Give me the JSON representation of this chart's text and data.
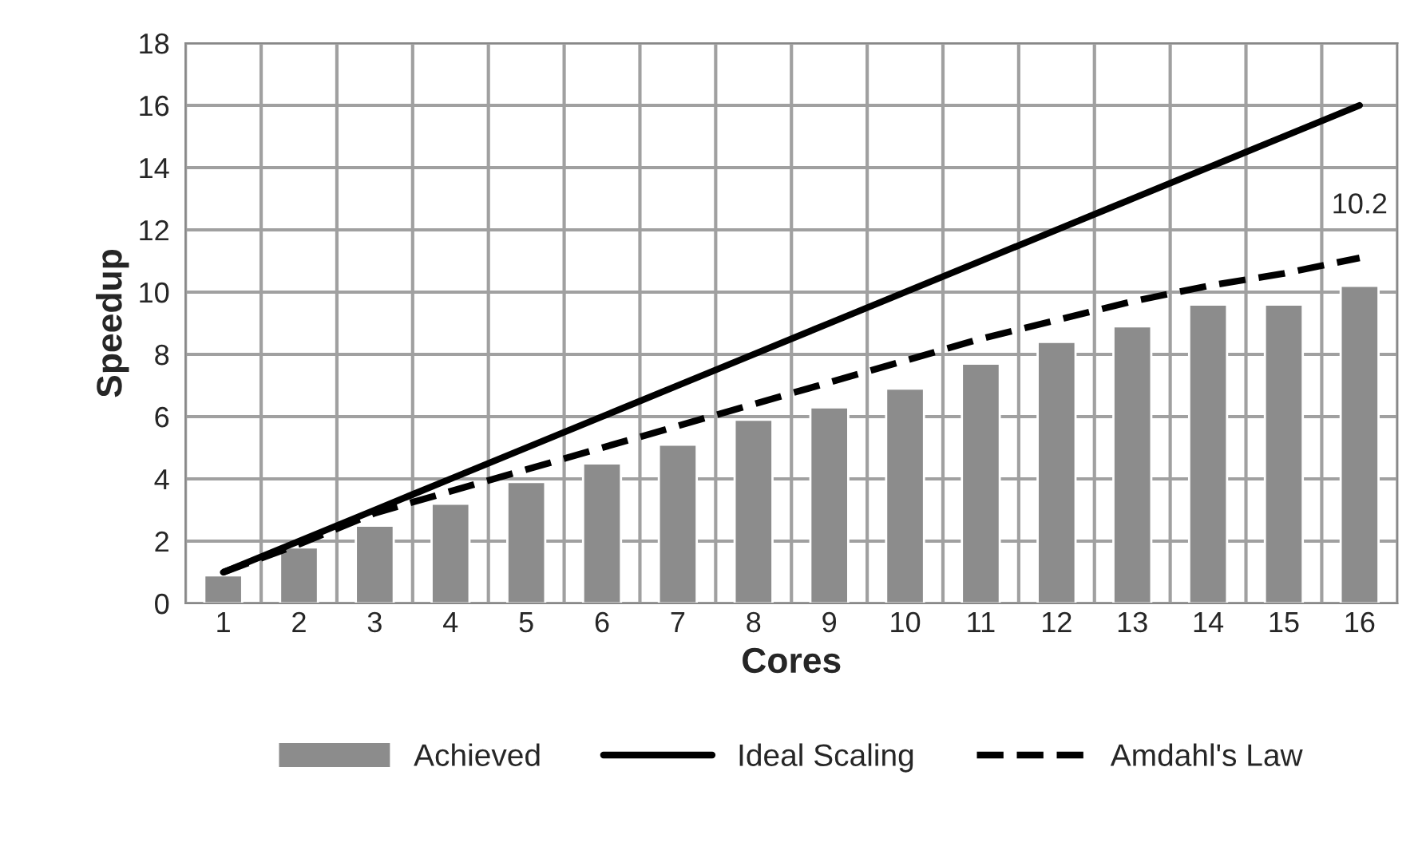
{
  "chart_data": {
    "type": "bar",
    "xlabel": "Cores",
    "ylabel": "Speedup",
    "categories": [
      "1",
      "2",
      "3",
      "4",
      "5",
      "6",
      "7",
      "8",
      "9",
      "10",
      "11",
      "12",
      "13",
      "14",
      "15",
      "16"
    ],
    "series": [
      {
        "name": "Achieved",
        "color": "#8c8c8c",
        "values": [
          0.9,
          1.8,
          2.5,
          3.2,
          3.9,
          4.5,
          5.1,
          5.9,
          6.3,
          6.9,
          7.7,
          8.4,
          8.9,
          9.6,
          9.6,
          10.2
        ],
        "value_labels": [
          null,
          null,
          null,
          null,
          null,
          null,
          null,
          null,
          null,
          null,
          null,
          null,
          null,
          null,
          null,
          "10.2"
        ]
      },
      {
        "name": "Ideal Scaling",
        "type": "line",
        "color": "#000000",
        "line_style": "solid",
        "values": [
          1,
          2,
          3,
          4,
          5,
          6,
          7,
          8,
          9,
          10,
          11,
          12,
          13,
          14,
          15,
          16
        ]
      },
      {
        "name": "Amdahl's Law",
        "type": "line",
        "color": "#000000",
        "line_style": "dashed",
        "values": [
          1,
          1.9,
          2.9,
          3.6,
          4.3,
          5.0,
          5.7,
          6.4,
          7.1,
          7.8,
          8.5,
          9.1,
          9.7,
          10.2,
          10.6,
          11.1
        ]
      }
    ],
    "ylim": [
      0,
      18
    ],
    "yticks": [
      0,
      2,
      4,
      6,
      8,
      10,
      12,
      14,
      16,
      18
    ],
    "grid": true,
    "legend": "bottom",
    "marker": "none"
  }
}
